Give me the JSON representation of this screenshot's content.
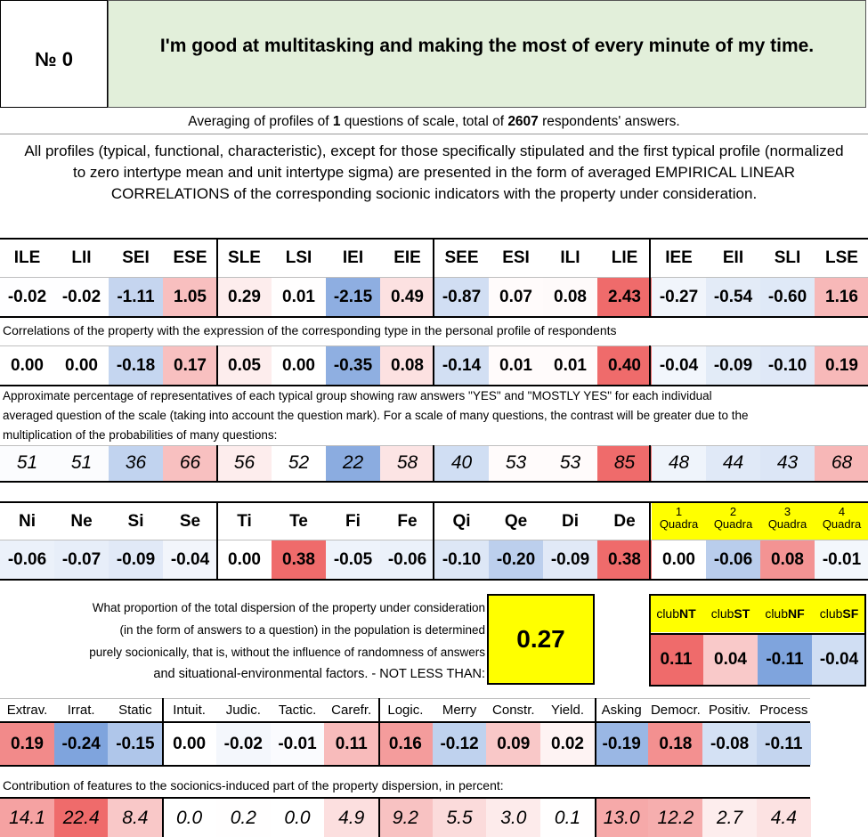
{
  "header": {
    "number_label": "№ 0",
    "question": "I'm good at multitasking and making the most of every minute of my time."
  },
  "summary": {
    "prefix": "Averaging of profiles of ",
    "questions_count": "1",
    "middle": " questions of scale, total of ",
    "respondents": "2607",
    "suffix": " respondents' answers."
  },
  "description": "All profiles (typical, functional, characteristic), except for those specifically stipulated and the first typical profile (normalized to zero intertype mean and unit intertype sigma) are presented in the form of averaged EMPIRICAL LINEAR CORRELATIONS of the corresponding socionic indicators with the property under consideration.",
  "types": {
    "headers": [
      "ILE",
      "LII",
      "SEI",
      "ESE",
      "SLE",
      "LSI",
      "IEI",
      "EIE",
      "SEE",
      "ESI",
      "ILI",
      "LIE",
      "IEE",
      "EII",
      "SLI",
      "LSE"
    ],
    "normalized": [
      "-0.02",
      "-0.02",
      "-1.11",
      "1.05",
      "0.29",
      "0.01",
      "-2.15",
      "0.49",
      "-0.87",
      "0.07",
      "0.08",
      "2.43",
      "-0.27",
      "-0.54",
      "-0.60",
      "1.16"
    ],
    "correlations_caption": "Correlations of the property with the expression of the corresponding type in the personal profile of respondents",
    "correlations": [
      "0.00",
      "0.00",
      "-0.18",
      "0.17",
      "0.05",
      "0.00",
      "-0.35",
      "0.08",
      "-0.14",
      "0.01",
      "0.01",
      "0.40",
      "-0.04",
      "-0.09",
      "-0.10",
      "0.19"
    ],
    "percent_caption_1": "Approximate percentage of representatives of each typical group showing raw answers \"YES\" and \"MOSTLY YES\" for each individual",
    "percent_caption_2": "averaged question of the scale (taking into account the question mark). For a scale of many questions, the contrast will be greater due to the",
    "percent_caption_3": "multiplication of the probabilities of many questions:",
    "percentages": [
      "51",
      "51",
      "36",
      "66",
      "56",
      "52",
      "22",
      "58",
      "40",
      "53",
      "53",
      "85",
      "48",
      "44",
      "43",
      "68"
    ]
  },
  "functions": {
    "headers": [
      "Ni",
      "Ne",
      "Si",
      "Se",
      "Ti",
      "Te",
      "Fi",
      "Fe",
      "Qi",
      "Qe",
      "Di",
      "De"
    ],
    "values": [
      "-0.06",
      "-0.07",
      "-0.09",
      "-0.04",
      "0.00",
      "0.38",
      "-0.05",
      "-0.06",
      "-0.10",
      "-0.20",
      "-0.09",
      "0.38"
    ],
    "quadras": [
      {
        "num": "1",
        "label": "Quadra",
        "value": "0.00"
      },
      {
        "num": "2",
        "label": "Quadra",
        "value": "-0.06"
      },
      {
        "num": "3",
        "label": "Quadra",
        "value": "0.08"
      },
      {
        "num": "4",
        "label": "Quadra",
        "value": "-0.01"
      }
    ]
  },
  "dispersion": {
    "line1": "What proportion of the total dispersion of the property under consideration",
    "line2": "(in the form of answers to a question) in the population is determined",
    "line3": "purely socionically, that is, without the influence of randomness of answers",
    "line4": "and situational-environmental factors. - NOT LESS THAN:",
    "value": "0.27"
  },
  "clubs": [
    {
      "prefix": "club",
      "bold": "NT",
      "value": "0.11"
    },
    {
      "prefix": "club",
      "bold": "ST",
      "value": "0.04"
    },
    {
      "prefix": "club",
      "bold": "NF",
      "value": "-0.11"
    },
    {
      "prefix": "club",
      "bold": "SF",
      "value": "-0.04"
    }
  ],
  "traits": {
    "headers": [
      "Extrav.",
      "Irrat.",
      "Static",
      "Intuit.",
      "Judic.",
      "Tactic.",
      "Carefr.",
      "Logic.",
      "Merry",
      "Constr.",
      "Yield.",
      "Asking",
      "Democr.",
      "Positiv.",
      "Process"
    ],
    "values": [
      "0.19",
      "-0.24",
      "-0.15",
      "0.00",
      "-0.02",
      "-0.01",
      "0.11",
      "0.16",
      "-0.12",
      "0.09",
      "0.02",
      "-0.19",
      "0.18",
      "-0.08",
      "-0.11"
    ],
    "contribution_caption": "Contribution of features to the socionics-induced part of the property dispersion, in percent:",
    "contributions": [
      "14.1",
      "22.4",
      "8.4",
      "0.0",
      "0.2",
      "0.0",
      "4.9",
      "9.2",
      "5.5",
      "3.0",
      "0.1",
      "13.0",
      "12.2",
      "2.7",
      "4.4"
    ]
  },
  "colors": {
    "header_bg": "#e2efda",
    "yellow": "#ffff00"
  }
}
